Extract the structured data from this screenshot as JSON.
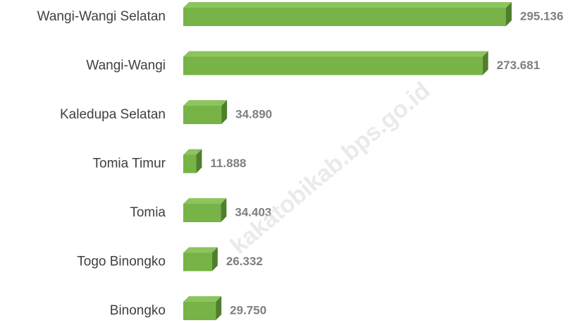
{
  "chart_data": {
    "type": "barh",
    "categories": [
      "Wangi-Wangi Selatan",
      "Wangi-Wangi",
      "Kaledupa Selatan",
      "Tomia Timur",
      "Tomia",
      "Togo Binongko",
      "Binongko"
    ],
    "values": [
      295136,
      273681,
      34890,
      11888,
      34403,
      26332,
      29750
    ],
    "value_labels": [
      "295.136",
      "273.681",
      "34.890",
      "11.888",
      "34.403",
      "26.332",
      "29.750"
    ],
    "color": "#77b346",
    "watermark": "kakatobikab.bps.go.id"
  }
}
